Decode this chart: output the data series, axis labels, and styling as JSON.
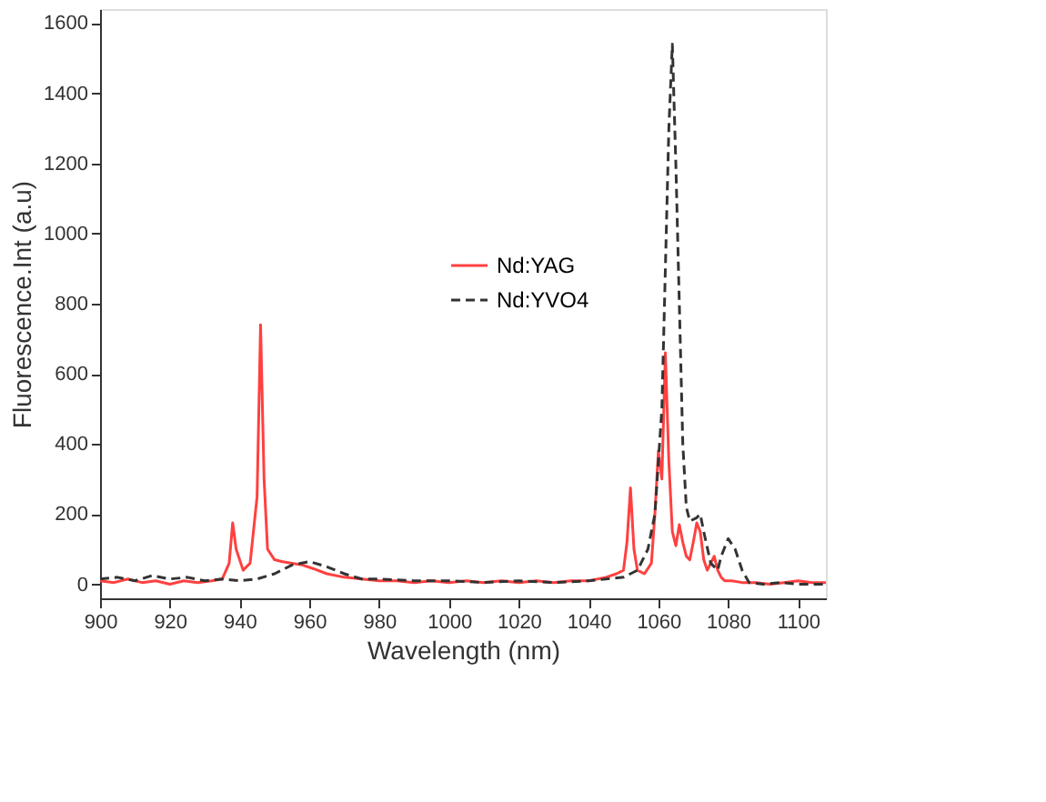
{
  "chart_data": {
    "type": "line",
    "xlabel": "Wavelength (nm)",
    "ylabel": "Fluorescence.Int (a.u)",
    "xlim": [
      900,
      1108
    ],
    "ylim": [
      -40,
      1640
    ],
    "xticks": [
      900,
      920,
      940,
      960,
      980,
      1000,
      1020,
      1040,
      1060,
      1080,
      1100
    ],
    "yticks": [
      0,
      200,
      400,
      600,
      800,
      1000,
      1200,
      1400,
      1600
    ],
    "grid": false,
    "legend": "top right",
    "series": [
      {
        "name": "Nd:YAG",
        "color": "#ff4040",
        "line_style": "solid",
        "x": [
          900,
          904,
          908,
          912,
          916,
          920,
          924,
          928,
          932,
          935,
          937,
          938,
          939,
          941,
          943,
          945,
          946,
          947,
          948,
          950,
          952,
          955,
          958,
          961,
          965,
          970,
          975,
          980,
          985,
          990,
          995,
          1000,
          1005,
          1010,
          1015,
          1020,
          1025,
          1030,
          1035,
          1040,
          1045,
          1048,
          1050,
          1051,
          1052,
          1053,
          1054,
          1056,
          1058,
          1059,
          1060,
          1061,
          1062,
          1063,
          1064,
          1065,
          1066,
          1067,
          1068,
          1069,
          1070,
          1071,
          1072,
          1073,
          1074,
          1075,
          1076,
          1077,
          1078,
          1079,
          1081,
          1084,
          1088,
          1092,
          1096,
          1100,
          1104,
          1108
        ],
        "values": [
          10,
          5,
          15,
          5,
          10,
          0,
          10,
          5,
          10,
          15,
          60,
          175,
          100,
          40,
          60,
          250,
          740,
          300,
          100,
          70,
          65,
          60,
          55,
          45,
          30,
          20,
          15,
          10,
          10,
          5,
          10,
          5,
          10,
          5,
          10,
          5,
          10,
          5,
          10,
          10,
          20,
          30,
          40,
          120,
          275,
          100,
          40,
          30,
          60,
          200,
          380,
          300,
          660,
          350,
          150,
          110,
          170,
          120,
          80,
          70,
          120,
          175,
          150,
          70,
          40,
          60,
          80,
          40,
          20,
          10,
          10,
          5,
          5,
          0,
          5,
          10,
          5,
          5
        ]
      },
      {
        "name": "Nd:YVO4",
        "color": "#333333",
        "line_style": "dashed",
        "x": [
          900,
          905,
          910,
          915,
          920,
          925,
          930,
          935,
          940,
          945,
          950,
          955,
          960,
          965,
          970,
          975,
          980,
          990,
          1000,
          1010,
          1020,
          1030,
          1040,
          1045,
          1050,
          1054,
          1057,
          1059,
          1061,
          1062,
          1063,
          1064,
          1065,
          1066,
          1067,
          1068,
          1069,
          1071,
          1072,
          1073,
          1075,
          1077,
          1078,
          1080,
          1082,
          1084,
          1086,
          1090,
          1095,
          1100,
          1108
        ],
        "values": [
          15,
          20,
          10,
          25,
          15,
          20,
          10,
          15,
          10,
          15,
          30,
          55,
          65,
          50,
          30,
          15,
          15,
          10,
          10,
          5,
          10,
          5,
          10,
          15,
          20,
          40,
          100,
          200,
          500,
          900,
          1300,
          1540,
          1200,
          800,
          400,
          220,
          180,
          190,
          200,
          150,
          60,
          40,
          80,
          130,
          100,
          40,
          5,
          0,
          5,
          0,
          0
        ]
      }
    ]
  }
}
